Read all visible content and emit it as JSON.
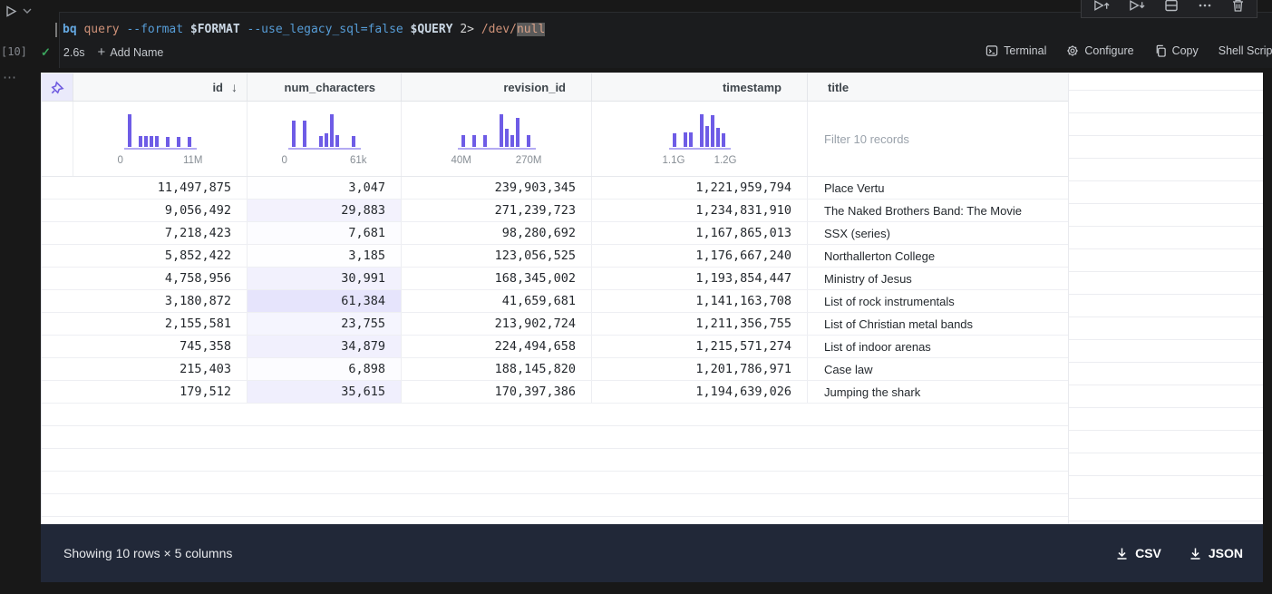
{
  "colors": {
    "accent_purple": "#6E5CE6",
    "num_shade_rgb": "99,88,235",
    "status_green": "#3BA55D",
    "footer_bg": "#212838"
  },
  "cell": {
    "execution_count": "[10]",
    "rail_more": "⋯",
    "command_tokens": [
      {
        "text": "bq",
        "style": "command"
      },
      {
        "text": " ",
        "style": "plain"
      },
      {
        "text": "query",
        "style": "string"
      },
      {
        "text": " ",
        "style": "plain"
      },
      {
        "text": "--format",
        "style": "flag"
      },
      {
        "text": " ",
        "style": "plain"
      },
      {
        "text": "$FORMAT",
        "style": "variable"
      },
      {
        "text": " ",
        "style": "plain"
      },
      {
        "text": "--use_legacy_sql=false",
        "style": "flag"
      },
      {
        "text": " ",
        "style": "plain"
      },
      {
        "text": "$QUERY",
        "style": "variable"
      },
      {
        "text": " ",
        "style": "plain"
      },
      {
        "text": "2>",
        "style": "plain"
      },
      {
        "text": " ",
        "style": "plain"
      },
      {
        "text": "/dev/",
        "style": "string"
      },
      {
        "text": "null",
        "style": "string-highlight"
      }
    ],
    "status": {
      "check": "✓",
      "duration": "2.6s",
      "plus": "+",
      "add_name": "Add Name"
    },
    "actions": [
      {
        "label": "Terminal",
        "icon": "terminal-icon"
      },
      {
        "label": "Configure",
        "icon": "gear-icon"
      },
      {
        "label": "Copy",
        "icon": "copy-icon"
      },
      {
        "label": "Shell Script",
        "icon": ""
      }
    ]
  },
  "table": {
    "columns": [
      {
        "name": "id",
        "align": "right",
        "sort_indicator": "↓",
        "hist": {
          "bars": [
            100,
            0,
            32,
            32,
            32,
            32,
            0,
            30,
            0,
            30,
            0,
            30
          ],
          "min_label": "0",
          "max_label": "11M"
        }
      },
      {
        "name": "num_characters",
        "align": "right",
        "hist": {
          "bars": [
            80,
            0,
            80,
            0,
            0,
            33,
            40,
            100,
            36,
            0,
            0,
            33
          ],
          "min_label": "0",
          "max_label": "61k"
        }
      },
      {
        "name": "revision_id",
        "align": "right",
        "hist": {
          "bars": [
            35,
            0,
            35,
            0,
            35,
            0,
            0,
            100,
            55,
            35,
            88,
            0,
            35
          ],
          "min_label": "40M",
          "max_label": "270M"
        }
      },
      {
        "name": "timestamp",
        "align": "right",
        "hist": {
          "bars": [
            40,
            0,
            42,
            42,
            0,
            100,
            62,
            96,
            58,
            40
          ],
          "min_label": "1.1G",
          "max_label": "1.2G"
        }
      },
      {
        "name": "title",
        "align": "left",
        "filter_placeholder": "Filter 10 records"
      }
    ],
    "num_characters_max": 61384,
    "rows": [
      {
        "id": "11,497,875",
        "num_characters": "3,047",
        "revision_id": "239,903,345",
        "timestamp": "1,221,959,794",
        "title": "Place Vertu"
      },
      {
        "id": "9,056,492",
        "num_characters": "29,883",
        "revision_id": "271,239,723",
        "timestamp": "1,234,831,910",
        "title": "The Naked Brothers Band: The Movie"
      },
      {
        "id": "7,218,423",
        "num_characters": "7,681",
        "revision_id": "98,280,692",
        "timestamp": "1,167,865,013",
        "title": "SSX (series)"
      },
      {
        "id": "5,852,422",
        "num_characters": "3,185",
        "revision_id": "123,056,525",
        "timestamp": "1,176,667,240",
        "title": "Northallerton College"
      },
      {
        "id": "4,758,956",
        "num_characters": "30,991",
        "revision_id": "168,345,002",
        "timestamp": "1,193,854,447",
        "title": "Ministry of Jesus"
      },
      {
        "id": "3,180,872",
        "num_characters": "61,384",
        "revision_id": "41,659,681",
        "timestamp": "1,141,163,708",
        "title": "List of rock instrumentals"
      },
      {
        "id": "2,155,581",
        "num_characters": "23,755",
        "revision_id": "213,902,724",
        "timestamp": "1,211,356,755",
        "title": "List of Christian metal bands"
      },
      {
        "id": "745,358",
        "num_characters": "34,879",
        "revision_id": "224,494,658",
        "timestamp": "1,215,571,274",
        "title": "List of indoor arenas"
      },
      {
        "id": "215,403",
        "num_characters": "6,898",
        "revision_id": "188,145,820",
        "timestamp": "1,201,786,971",
        "title": "Case law"
      },
      {
        "id": "179,512",
        "num_characters": "35,615",
        "revision_id": "170,397,386",
        "timestamp": "1,194,639,026",
        "title": "Jumping the shark"
      }
    ]
  },
  "footer": {
    "summary": "Showing 10 rows × 5 columns",
    "exports": [
      {
        "label": "CSV"
      },
      {
        "label": "JSON"
      }
    ]
  }
}
